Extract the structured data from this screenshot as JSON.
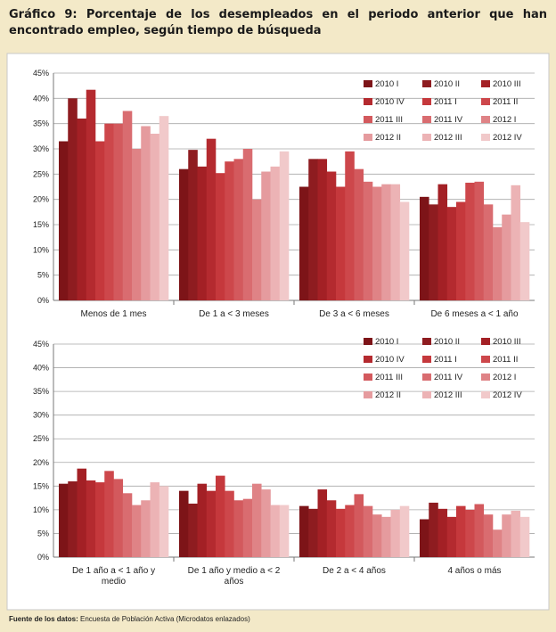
{
  "title": "Gráfico 9: Porcentaje de los desempleados en el periodo anterior que han encontrado empleo, según tiempo de búsqueda",
  "source": {
    "label": "Fuente de los datos:",
    "text": " Encuesta de Población Activa (Microdatos enlazados)"
  },
  "colors": [
    "#7d1418",
    "#8e1c20",
    "#a32025",
    "#b42a2f",
    "#c5383c",
    "#cd474b",
    "#d3595d",
    "#d96c70",
    "#df8386",
    "#e59b9e",
    "#ecb3b5",
    "#f1c9ca"
  ],
  "chart_data": [
    {
      "type": "bar",
      "ylim": [
        0,
        45
      ],
      "yticks": [
        "0%",
        "5%",
        "10%",
        "15%",
        "20%",
        "25%",
        "30%",
        "35%",
        "40%",
        "45%"
      ],
      "legend_position": "top-right",
      "categories": [
        [
          "Menos de 1 mes"
        ],
        [
          "De 1 a < 3 meses"
        ],
        [
          "De 3 a < 6 meses"
        ],
        [
          "De  6 meses a < 1 año"
        ]
      ],
      "series": [
        {
          "name": "2010 I",
          "values": [
            31.5,
            26.0,
            22.5,
            20.5
          ]
        },
        {
          "name": "2010 II",
          "values": [
            40.0,
            29.8,
            28.0,
            19.0
          ]
        },
        {
          "name": "2010 III",
          "values": [
            36.0,
            26.5,
            28.0,
            23.0
          ]
        },
        {
          "name": "2010 IV",
          "values": [
            41.7,
            32.0,
            25.5,
            18.5
          ]
        },
        {
          "name": "2011 I",
          "values": [
            31.5,
            25.2,
            22.5,
            19.5
          ]
        },
        {
          "name": "2011 II",
          "values": [
            35.0,
            27.5,
            29.5,
            23.3
          ]
        },
        {
          "name": "2011 III",
          "values": [
            35.0,
            28.0,
            26.0,
            23.5
          ]
        },
        {
          "name": "2011 IV",
          "values": [
            37.5,
            30.0,
            23.5,
            19.0
          ]
        },
        {
          "name": "2012 I",
          "values": [
            30.0,
            20.0,
            22.5,
            14.5
          ]
        },
        {
          "name": "2012 II",
          "values": [
            34.5,
            25.5,
            23.0,
            17.0
          ]
        },
        {
          "name": "2012 III",
          "values": [
            33.0,
            26.5,
            23.0,
            22.8
          ]
        },
        {
          "name": "2012 IV",
          "values": [
            36.5,
            29.5,
            19.5,
            15.5
          ]
        }
      ]
    },
    {
      "type": "bar",
      "ylim": [
        0,
        45
      ],
      "yticks": [
        "0%",
        "5%",
        "10%",
        "15%",
        "20%",
        "25%",
        "30%",
        "35%",
        "40%",
        "45%"
      ],
      "legend_position": "top-right",
      "categories": [
        [
          "De 1 año a < 1 año y",
          "medio"
        ],
        [
          "De 1 año y medio a < 2",
          "años"
        ],
        [
          "De 2 a < 4 años"
        ],
        [
          "4 años o más"
        ]
      ],
      "series": [
        {
          "name": "2010 I",
          "values": [
            15.5,
            14.0,
            10.8,
            8.0
          ]
        },
        {
          "name": "2010 II",
          "values": [
            16.0,
            11.3,
            10.2,
            11.5
          ]
        },
        {
          "name": "2010 III",
          "values": [
            18.7,
            15.5,
            14.3,
            10.2
          ]
        },
        {
          "name": "2010 IV",
          "values": [
            16.2,
            14.0,
            12.0,
            8.5
          ]
        },
        {
          "name": "2011 I",
          "values": [
            15.8,
            17.2,
            10.2,
            10.8
          ]
        },
        {
          "name": "2011 II",
          "values": [
            18.2,
            14.0,
            11.0,
            10.0
          ]
        },
        {
          "name": "2011 III",
          "values": [
            16.5,
            12.0,
            13.3,
            11.2
          ]
        },
        {
          "name": "2011 IV",
          "values": [
            13.5,
            12.3,
            10.8,
            9.0
          ]
        },
        {
          "name": "2012 I",
          "values": [
            11.0,
            15.5,
            9.0,
            5.8
          ]
        },
        {
          "name": "2012 II",
          "values": [
            12.0,
            14.3,
            8.5,
            9.0
          ]
        },
        {
          "name": "2012 III",
          "values": [
            15.8,
            11.0,
            10.0,
            9.8
          ]
        },
        {
          "name": "2012 IV",
          "values": [
            15.0,
            11.0,
            10.8,
            8.5
          ]
        }
      ]
    }
  ]
}
